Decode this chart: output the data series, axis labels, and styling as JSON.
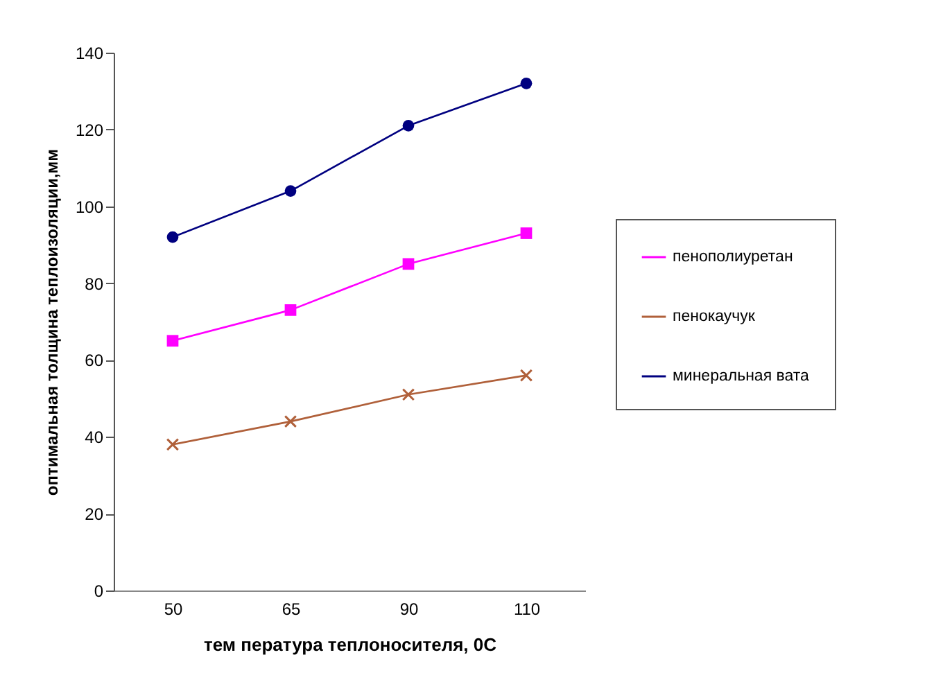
{
  "chart_data": {
    "type": "line",
    "xlabel": "тем пература  теплоносителя,  0С",
    "ylabel": "оптимальная толщина теплоизоляции,мм",
    "categories": [
      "50",
      "65",
      "90",
      "110"
    ],
    "series": [
      {
        "name": "пенополиуретан",
        "color": "#ff00ff",
        "marker": "square",
        "values": [
          65,
          73,
          85,
          93
        ]
      },
      {
        "name": "пенокаучук",
        "color": "#b0603a",
        "marker": "cross",
        "values": [
          38,
          44,
          51,
          56
        ]
      },
      {
        "name": "минеральная вата",
        "color": "#000080",
        "marker": "circle",
        "values": [
          92,
          104,
          121,
          132
        ]
      }
    ],
    "ylim": [
      0,
      140
    ],
    "yticks": [
      0,
      20,
      40,
      60,
      80,
      100,
      120,
      140
    ],
    "grid": false,
    "legend": "right"
  }
}
